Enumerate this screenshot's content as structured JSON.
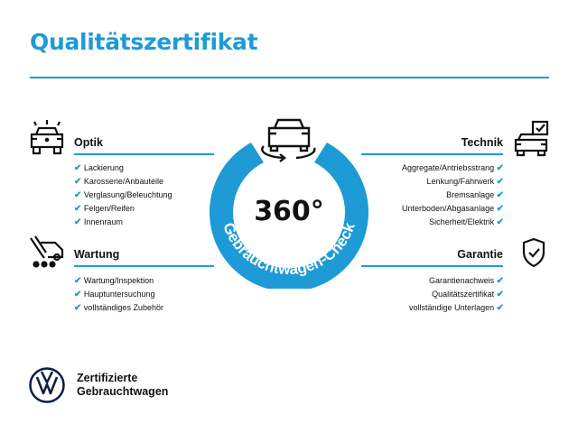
{
  "title": "Qualitätszertifikat",
  "accent": "#1e9bd7",
  "center": {
    "value": "360°",
    "ring_text": "Gebrauchtwagen-Check",
    "icon": "car-rotate-icon"
  },
  "sections": {
    "optik": {
      "title": "Optik",
      "icon": "car-lights-icon",
      "items": [
        "Lackierung",
        "Karosserie/Anbauteile",
        "Verglasung/Beleuchtung",
        "Felgen/Reifen",
        "Innenraum"
      ]
    },
    "wartung": {
      "title": "Wartung",
      "icon": "service-truck-icon",
      "items": [
        "Wartung/Inspektion",
        "Hauptuntersuchung",
        "vollständiges Zubehör"
      ]
    },
    "technik": {
      "title": "Technik",
      "icon": "car-checklist-icon",
      "items": [
        "Aggregate/Antriebsstrang",
        "Lenkung/Fahrwerk",
        "Bremsanlage",
        "Unterboden/Abgasanlage",
        "Sicherheit/Elektrik"
      ]
    },
    "garantie": {
      "title": "Garantie",
      "icon": "shield-check-icon",
      "items": [
        "Garantienachweis",
        "Qualitätszertifikat",
        "vollständige Unterlagen"
      ]
    }
  },
  "check": "✔",
  "brand": {
    "line1": "Zertifizierte",
    "line2": "Gebrauchtwagen",
    "logo": "VW"
  }
}
